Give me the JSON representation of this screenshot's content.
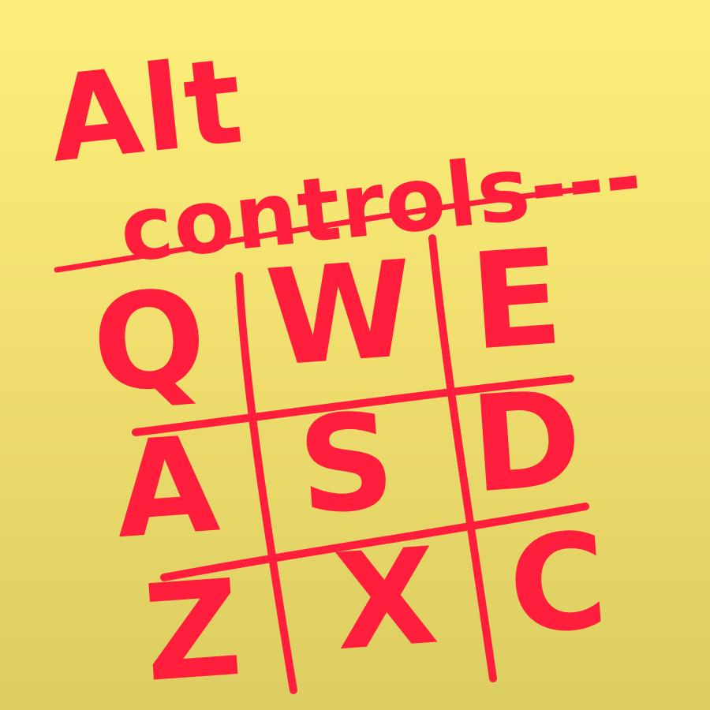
{
  "note": {
    "title": "Alt",
    "subtitle": "controls---"
  },
  "grid": {
    "rows": [
      [
        "Q",
        "W",
        "E"
      ],
      [
        "A",
        "S",
        "D"
      ],
      [
        "Z",
        "X",
        "C"
      ]
    ]
  },
  "colors": {
    "ink": "#ff1f3d",
    "background_top": "#fdef7c",
    "background_bottom": "#dccd62"
  }
}
